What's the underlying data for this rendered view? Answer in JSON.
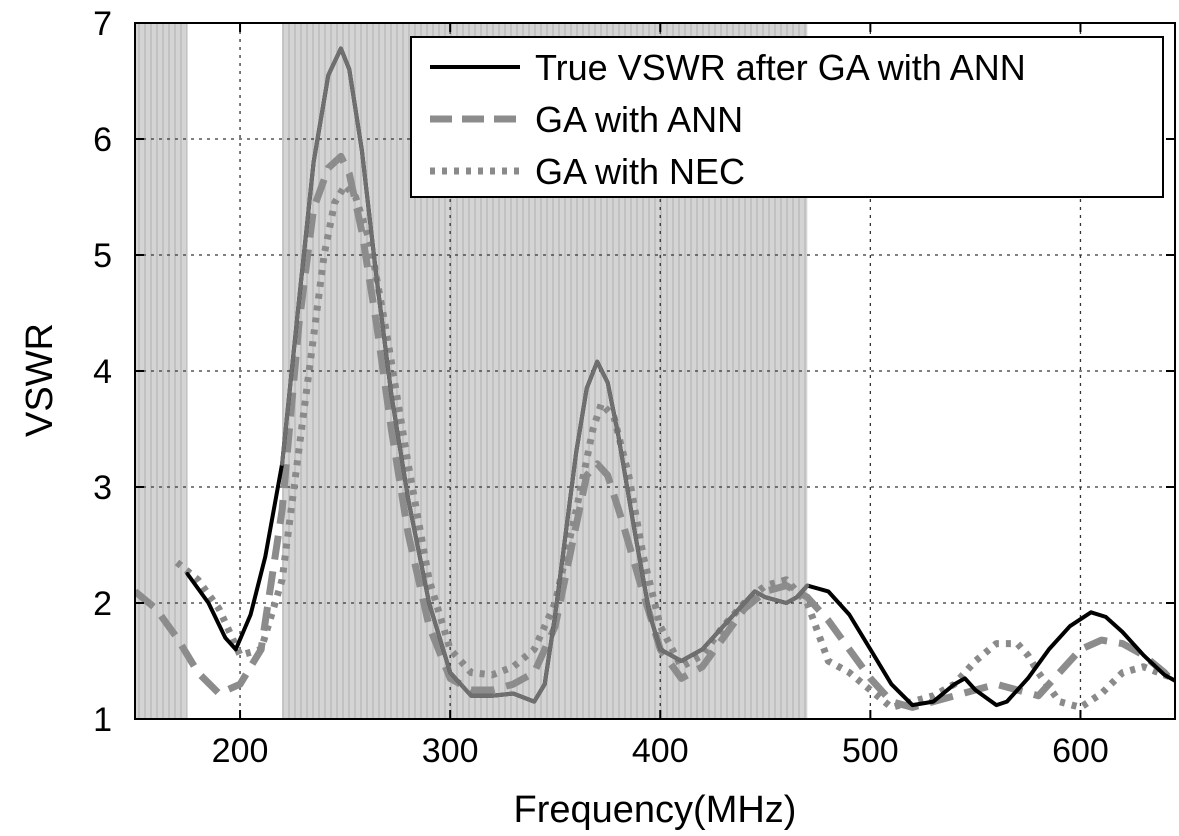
{
  "chart_data": {
    "type": "line",
    "title": "",
    "xlabel": "Frequency(MHz)",
    "ylabel": "VSWR",
    "xlim": [
      150,
      645
    ],
    "ylim": [
      1,
      7
    ],
    "xticks": [
      200,
      300,
      400,
      500,
      600
    ],
    "yticks": [
      1,
      2,
      3,
      4,
      5,
      6,
      7
    ],
    "grid": true,
    "legend_position": "top-right",
    "shaded_bands": [
      [
        150,
        175
      ],
      [
        220,
        470
      ]
    ],
    "colors": {
      "band_fill": "#d4d4d4",
      "band_line": "#bdbdbd",
      "grid": "#333333",
      "true_vswr_out": "#000000",
      "true_vswr_in": "#6f6f6f",
      "ga_ann": "#8c8c8c",
      "ga_nec": "#8a8a8a"
    },
    "series": [
      {
        "name": "True VSWR after GA with ANN",
        "style": "solid",
        "x": [
          175,
          185,
          193,
          198,
          205,
          212,
          220,
          228,
          235,
          242,
          248,
          252,
          258,
          265,
          272,
          280,
          290,
          300,
          310,
          320,
          330,
          340,
          345,
          350,
          355,
          360,
          365,
          370,
          375,
          380,
          388,
          395,
          400,
          410,
          420,
          430,
          440,
          445,
          450,
          460,
          465,
          470,
          480,
          490,
          500,
          510,
          520,
          530,
          540,
          545,
          550,
          560,
          565,
          575,
          585,
          595,
          605,
          612,
          620,
          630,
          640,
          645
        ],
        "y": [
          2.25,
          2.0,
          1.7,
          1.6,
          1.9,
          2.4,
          3.2,
          4.6,
          5.8,
          6.55,
          6.78,
          6.6,
          5.9,
          4.8,
          3.8,
          2.9,
          2.0,
          1.4,
          1.2,
          1.2,
          1.22,
          1.15,
          1.3,
          1.9,
          2.6,
          3.3,
          3.85,
          4.08,
          3.9,
          3.45,
          2.6,
          1.9,
          1.6,
          1.5,
          1.6,
          1.8,
          2.0,
          2.1,
          2.05,
          2.0,
          2.05,
          2.15,
          2.1,
          1.9,
          1.6,
          1.3,
          1.12,
          1.15,
          1.3,
          1.35,
          1.25,
          1.12,
          1.15,
          1.35,
          1.6,
          1.8,
          1.92,
          1.88,
          1.75,
          1.55,
          1.38,
          1.33
        ]
      },
      {
        "name": "GA with ANN",
        "style": "dashed",
        "x": [
          150,
          160,
          170,
          180,
          190,
          200,
          210,
          220,
          228,
          235,
          242,
          248,
          252,
          258,
          265,
          272,
          280,
          290,
          300,
          310,
          320,
          330,
          340,
          350,
          358,
          365,
          370,
          375,
          382,
          390,
          400,
          410,
          420,
          430,
          440,
          450,
          460,
          470,
          480,
          490,
          500,
          510,
          520,
          530,
          540,
          550,
          560,
          570,
          580,
          590,
          600,
          610,
          620,
          630,
          640,
          645
        ],
        "y": [
          2.1,
          1.95,
          1.7,
          1.4,
          1.22,
          1.3,
          1.6,
          2.8,
          4.4,
          5.4,
          5.75,
          5.85,
          5.7,
          5.2,
          4.4,
          3.5,
          2.6,
          1.8,
          1.35,
          1.25,
          1.25,
          1.3,
          1.4,
          1.8,
          2.5,
          3.1,
          3.2,
          3.1,
          2.7,
          2.2,
          1.6,
          1.35,
          1.45,
          1.7,
          1.95,
          2.1,
          2.15,
          2.05,
          1.85,
          1.6,
          1.35,
          1.15,
          1.1,
          1.15,
          1.2,
          1.25,
          1.3,
          1.25,
          1.2,
          1.4,
          1.6,
          1.68,
          1.65,
          1.55,
          1.4,
          1.3
        ]
      },
      {
        "name": "GA with NEC",
        "style": "dotted",
        "x": [
          170,
          180,
          190,
          200,
          210,
          220,
          230,
          240,
          245,
          250,
          255,
          262,
          270,
          280,
          290,
          300,
          310,
          320,
          330,
          340,
          350,
          360,
          368,
          372,
          378,
          385,
          392,
          400,
          410,
          420,
          430,
          440,
          450,
          460,
          470,
          480,
          490,
          500,
          510,
          520,
          530,
          540,
          550,
          560,
          570,
          575,
          580,
          590,
          600,
          610,
          620,
          630,
          640,
          645
        ],
        "y": [
          2.35,
          2.2,
          1.95,
          1.55,
          1.6,
          2.2,
          3.6,
          5.0,
          5.45,
          5.6,
          5.5,
          5.1,
          4.3,
          3.2,
          2.2,
          1.6,
          1.4,
          1.38,
          1.45,
          1.6,
          2.0,
          2.8,
          3.5,
          3.72,
          3.6,
          3.1,
          2.4,
          1.8,
          1.45,
          1.55,
          1.8,
          2.0,
          2.15,
          2.2,
          2.0,
          1.5,
          1.4,
          1.25,
          1.1,
          1.15,
          1.2,
          1.3,
          1.5,
          1.65,
          1.65,
          1.55,
          1.4,
          1.15,
          1.1,
          1.22,
          1.4,
          1.45,
          1.38,
          1.35
        ]
      }
    ]
  }
}
